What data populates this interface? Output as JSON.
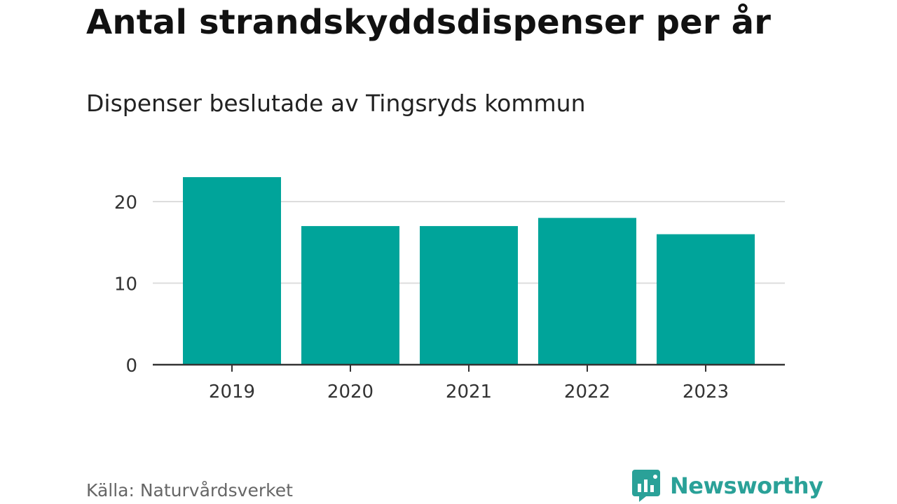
{
  "header": {
    "title": "Antal strandskyddsdispenser per år",
    "subtitle": "Dispenser beslutade av Tingsryds kommun"
  },
  "footer": {
    "source": "Källa: Naturvårdsverket",
    "brand": "Newsworthy"
  },
  "colors": {
    "bar": "#00a49a",
    "grid": "#dddddd",
    "axis": "#333333",
    "brand": "#2aa198"
  },
  "icons": {
    "brand_logo": "newsworthy-bar-chart-bubble-icon"
  },
  "chart_data": {
    "type": "bar",
    "title": "Antal strandskyddsdispenser per år",
    "subtitle": "Dispenser beslutade av Tingsryds kommun",
    "categories": [
      "2019",
      "2020",
      "2021",
      "2022",
      "2023"
    ],
    "values": [
      23,
      17,
      17,
      18,
      16
    ],
    "xlabel": "",
    "ylabel": "",
    "ylim": [
      0,
      23
    ],
    "yticks": [
      0,
      10,
      20
    ],
    "grid": true,
    "legend": "none"
  }
}
